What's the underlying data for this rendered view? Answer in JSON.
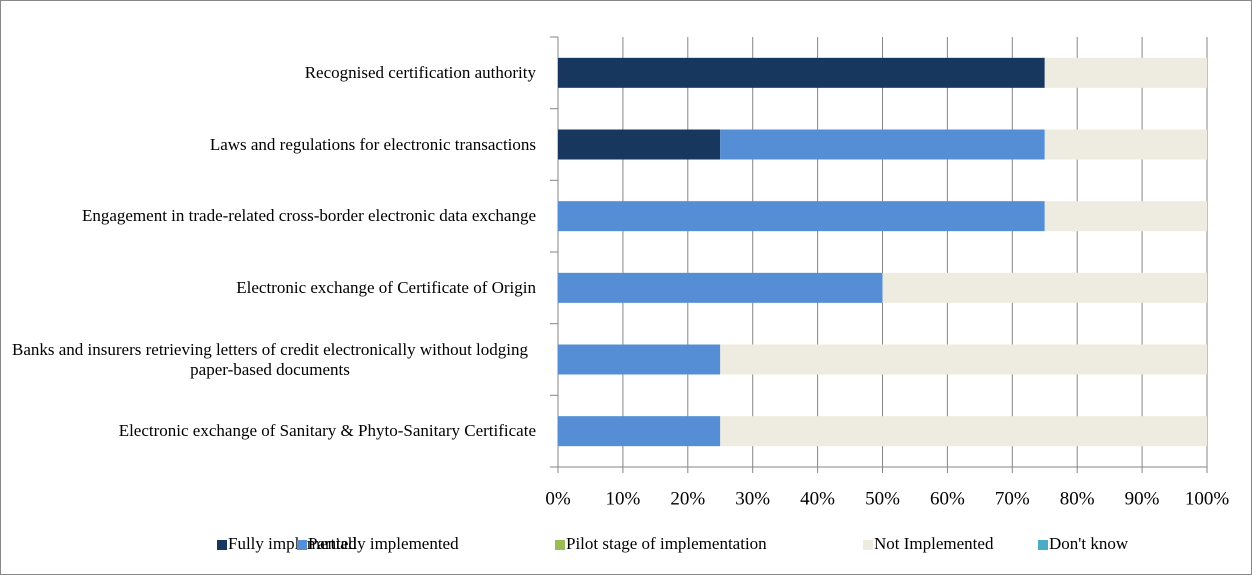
{
  "chart_data": {
    "type": "stacked-bar-horizontal",
    "categories": [
      "Recognised certification authority",
      "Laws and regulations for electronic transactions",
      "Engagement in trade-related cross-border electronic data exchange",
      "Electronic exchange of Certificate of Origin",
      "Banks and insurers retrieving letters of credit electronically without lodging paper-based documents",
      "Electronic exchange of Sanitary & Phyto-Sanitary Certificate"
    ],
    "series": [
      {
        "name": "Fully implemented",
        "color": "#17375e",
        "values": [
          75,
          25,
          0,
          0,
          0,
          0
        ]
      },
      {
        "name": "Partially implemented",
        "color": "#558ed5",
        "values": [
          0,
          50,
          75,
          50,
          25,
          25
        ]
      },
      {
        "name": "Pilot stage of implementation",
        "color": "#9bbb59",
        "values": [
          0,
          0,
          0,
          0,
          0,
          0
        ]
      },
      {
        "name": "Not Implemented",
        "color": "#eeece1",
        "values": [
          25,
          25,
          25,
          50,
          75,
          75
        ]
      },
      {
        "name": "Don't know",
        "color": "#4bacc6",
        "values": [
          0,
          0,
          0,
          0,
          0,
          0
        ]
      }
    ],
    "xlim": [
      0,
      100
    ],
    "xticks": [
      {
        "value": 0,
        "label": "0%"
      },
      {
        "value": 10,
        "label": "10%"
      },
      {
        "value": 20,
        "label": "20%"
      },
      {
        "value": 30,
        "label": "30%"
      },
      {
        "value": 40,
        "label": "40%"
      },
      {
        "value": 50,
        "label": "50%"
      },
      {
        "value": 60,
        "label": "60%"
      },
      {
        "value": 70,
        "label": "70%"
      },
      {
        "value": 80,
        "label": "80%"
      },
      {
        "value": 90,
        "label": "90%"
      },
      {
        "value": 100,
        "label": "100%"
      }
    ],
    "grid": true,
    "legend": "bottom"
  }
}
